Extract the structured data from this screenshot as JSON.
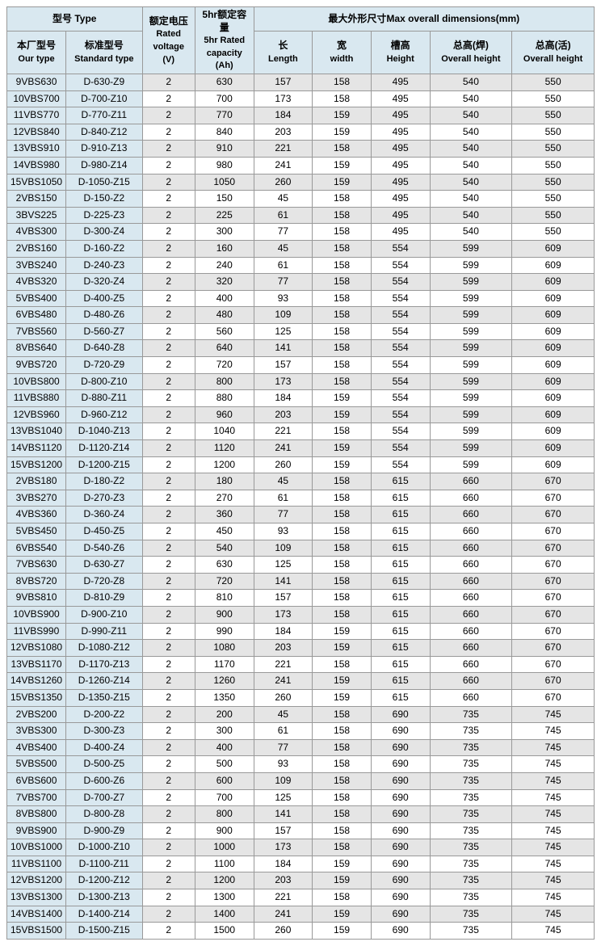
{
  "headers": {
    "type_group": "型号 Type",
    "our_type": "本厂型号",
    "our_type_en": "Our type",
    "std_type": "标准型号",
    "std_type_en": "Standard type",
    "rated_voltage": "额定电压",
    "rated_voltage_en": "Rated voltage",
    "rated_voltage_unit": "(V)",
    "rated_capacity": "5hr额定容量",
    "rated_capacity_en": "5hr Rated capacity",
    "rated_capacity_unit": "(Ah)",
    "dimensions": "最大外形尺寸Max overall dimensions(mm)",
    "length": "长",
    "length_en": "Length",
    "width": "宽",
    "width_en": "width",
    "height": "槽高",
    "height_en": "Height",
    "overall_h1": "总高(焊)",
    "overall_h1_en": "Overall height",
    "overall_h2": "总高(活)",
    "overall_h2_en": "Overall height"
  },
  "styling": {
    "header_bg": "#d9e8f0",
    "stripe_gray": "#e5e5e5",
    "stripe_white": "#ffffff",
    "border_color": "#999999",
    "font_size": 12,
    "header_font_weight": "bold"
  },
  "rows": [
    [
      "9VBS630",
      "D-630-Z9",
      "2",
      "630",
      "157",
      "158",
      "495",
      "540",
      "550"
    ],
    [
      "10VBS700",
      "D-700-Z10",
      "2",
      "700",
      "173",
      "158",
      "495",
      "540",
      "550"
    ],
    [
      "11VBS770",
      "D-770-Z11",
      "2",
      "770",
      "184",
      "159",
      "495",
      "540",
      "550"
    ],
    [
      "12VBS840",
      "D-840-Z12",
      "2",
      "840",
      "203",
      "159",
      "495",
      "540",
      "550"
    ],
    [
      "13VBS910",
      "D-910-Z13",
      "2",
      "910",
      "221",
      "158",
      "495",
      "540",
      "550"
    ],
    [
      "14VBS980",
      "D-980-Z14",
      "2",
      "980",
      "241",
      "159",
      "495",
      "540",
      "550"
    ],
    [
      "15VBS1050",
      "D-1050-Z15",
      "2",
      "1050",
      "260",
      "159",
      "495",
      "540",
      "550"
    ],
    [
      "2VBS150",
      "D-150-Z2",
      "2",
      "150",
      "45",
      "158",
      "495",
      "540",
      "550"
    ],
    [
      "3BVS225",
      "D-225-Z3",
      "2",
      "225",
      "61",
      "158",
      "495",
      "540",
      "550"
    ],
    [
      "4VBS300",
      "D-300-Z4",
      "2",
      "300",
      "77",
      "158",
      "495",
      "540",
      "550"
    ],
    [
      "2VBS160",
      "D-160-Z2",
      "2",
      "160",
      "45",
      "158",
      "554",
      "599",
      "609"
    ],
    [
      "3VBS240",
      "D-240-Z3",
      "2",
      "240",
      "61",
      "158",
      "554",
      "599",
      "609"
    ],
    [
      "4VBS320",
      "D-320-Z4",
      "2",
      "320",
      "77",
      "158",
      "554",
      "599",
      "609"
    ],
    [
      "5VBS400",
      "D-400-Z5",
      "2",
      "400",
      "93",
      "158",
      "554",
      "599",
      "609"
    ],
    [
      "6VBS480",
      "D-480-Z6",
      "2",
      "480",
      "109",
      "158",
      "554",
      "599",
      "609"
    ],
    [
      "7VBS560",
      "D-560-Z7",
      "2",
      "560",
      "125",
      "158",
      "554",
      "599",
      "609"
    ],
    [
      "8VBS640",
      "D-640-Z8",
      "2",
      "640",
      "141",
      "158",
      "554",
      "599",
      "609"
    ],
    [
      "9VBS720",
      "D-720-Z9",
      "2",
      "720",
      "157",
      "158",
      "554",
      "599",
      "609"
    ],
    [
      "10VBS800",
      "D-800-Z10",
      "2",
      "800",
      "173",
      "158",
      "554",
      "599",
      "609"
    ],
    [
      "11VBS880",
      "D-880-Z11",
      "2",
      "880",
      "184",
      "159",
      "554",
      "599",
      "609"
    ],
    [
      "12VBS960",
      "D-960-Z12",
      "2",
      "960",
      "203",
      "159",
      "554",
      "599",
      "609"
    ],
    [
      "13VBS1040",
      "D-1040-Z13",
      "2",
      "1040",
      "221",
      "158",
      "554",
      "599",
      "609"
    ],
    [
      "14VBS1120",
      "D-1120-Z14",
      "2",
      "1120",
      "241",
      "159",
      "554",
      "599",
      "609"
    ],
    [
      "15VBS1200",
      "D-1200-Z15",
      "2",
      "1200",
      "260",
      "159",
      "554",
      "599",
      "609"
    ],
    [
      "2VBS180",
      "D-180-Z2",
      "2",
      "180",
      "45",
      "158",
      "615",
      "660",
      "670"
    ],
    [
      "3VBS270",
      "D-270-Z3",
      "2",
      "270",
      "61",
      "158",
      "615",
      "660",
      "670"
    ],
    [
      "4VBS360",
      "D-360-Z4",
      "2",
      "360",
      "77",
      "158",
      "615",
      "660",
      "670"
    ],
    [
      "5VBS450",
      "D-450-Z5",
      "2",
      "450",
      "93",
      "158",
      "615",
      "660",
      "670"
    ],
    [
      "6VBS540",
      "D-540-Z6",
      "2",
      "540",
      "109",
      "158",
      "615",
      "660",
      "670"
    ],
    [
      "7VBS630",
      "D-630-Z7",
      "2",
      "630",
      "125",
      "158",
      "615",
      "660",
      "670"
    ],
    [
      "8VBS720",
      "D-720-Z8",
      "2",
      "720",
      "141",
      "158",
      "615",
      "660",
      "670"
    ],
    [
      "9VBS810",
      "D-810-Z9",
      "2",
      "810",
      "157",
      "158",
      "615",
      "660",
      "670"
    ],
    [
      "10VBS900",
      "D-900-Z10",
      "2",
      "900",
      "173",
      "158",
      "615",
      "660",
      "670"
    ],
    [
      "11VBS990",
      "D-990-Z11",
      "2",
      "990",
      "184",
      "159",
      "615",
      "660",
      "670"
    ],
    [
      "12VBS1080",
      "D-1080-Z12",
      "2",
      "1080",
      "203",
      "159",
      "615",
      "660",
      "670"
    ],
    [
      "13VBS1170",
      "D-1170-Z13",
      "2",
      "1170",
      "221",
      "158",
      "615",
      "660",
      "670"
    ],
    [
      "14VBS1260",
      "D-1260-Z14",
      "2",
      "1260",
      "241",
      "159",
      "615",
      "660",
      "670"
    ],
    [
      "15VBS1350",
      "D-1350-Z15",
      "2",
      "1350",
      "260",
      "159",
      "615",
      "660",
      "670"
    ],
    [
      "2VBS200",
      "D-200-Z2",
      "2",
      "200",
      "45",
      "158",
      "690",
      "735",
      "745"
    ],
    [
      "3VBS300",
      "D-300-Z3",
      "2",
      "300",
      "61",
      "158",
      "690",
      "735",
      "745"
    ],
    [
      "4VBS400",
      "D-400-Z4",
      "2",
      "400",
      "77",
      "158",
      "690",
      "735",
      "745"
    ],
    [
      "5VBS500",
      "D-500-Z5",
      "2",
      "500",
      "93",
      "158",
      "690",
      "735",
      "745"
    ],
    [
      "6VBS600",
      "D-600-Z6",
      "2",
      "600",
      "109",
      "158",
      "690",
      "735",
      "745"
    ],
    [
      "7VBS700",
      "D-700-Z7",
      "2",
      "700",
      "125",
      "158",
      "690",
      "735",
      "745"
    ],
    [
      "8VBS800",
      "D-800-Z8",
      "2",
      "800",
      "141",
      "158",
      "690",
      "735",
      "745"
    ],
    [
      "9VBS900",
      "D-900-Z9",
      "2",
      "900",
      "157",
      "158",
      "690",
      "735",
      "745"
    ],
    [
      "10VBS1000",
      "D-1000-Z10",
      "2",
      "1000",
      "173",
      "158",
      "690",
      "735",
      "745"
    ],
    [
      "11VBS1100",
      "D-1100-Z11",
      "2",
      "1100",
      "184",
      "159",
      "690",
      "735",
      "745"
    ],
    [
      "12VBS1200",
      "D-1200-Z12",
      "2",
      "1200",
      "203",
      "159",
      "690",
      "735",
      "745"
    ],
    [
      "13VBS1300",
      "D-1300-Z13",
      "2",
      "1300",
      "221",
      "158",
      "690",
      "735",
      "745"
    ],
    [
      "14VBS1400",
      "D-1400-Z14",
      "2",
      "1400",
      "241",
      "159",
      "690",
      "735",
      "745"
    ],
    [
      "15VBS1500",
      "D-1500-Z15",
      "2",
      "1500",
      "260",
      "159",
      "690",
      "735",
      "745"
    ]
  ]
}
